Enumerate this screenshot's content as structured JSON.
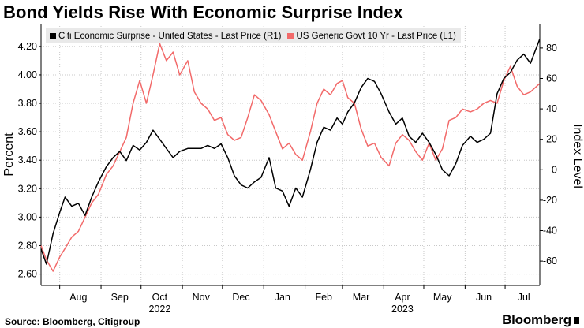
{
  "header": {
    "title": "Bond Yields Rise With Economic Surprise Index"
  },
  "footer": {
    "source": "Source: Bloomberg, Citigroup",
    "brand": "Bloomberg"
  },
  "colors": {
    "citi": "#000000",
    "yield": "#f26a6a",
    "grid": "#c8c8c8",
    "legend_bg": "#e9e9e9"
  },
  "chart_data": {
    "type": "line",
    "title": "Bond Yields Rise With Economic Surprise Index",
    "ylabel_left": "Percent",
    "ylabel_right": "Index Level",
    "left_ticks": [
      "4.20",
      "4.00",
      "3.80",
      "3.60",
      "3.40",
      "3.20",
      "3.00",
      "2.80",
      "2.60"
    ],
    "right_ticks": [
      "80",
      "60",
      "40",
      "20",
      "0",
      "-20",
      "-40",
      "-60"
    ],
    "ylim_left": [
      2.52,
      4.36
    ],
    "ylim_right": [
      -76,
      96
    ],
    "x_range": [
      "2022-07-18",
      "2023-07-27"
    ],
    "months": [
      {
        "label": "Aug",
        "date": "2022-08-15"
      },
      {
        "label": "Sep",
        "date": "2022-09-15"
      },
      {
        "label": "Oct",
        "date": "2022-10-15"
      },
      {
        "label": "Nov",
        "date": "2022-11-15"
      },
      {
        "label": "Dec",
        "date": "2022-12-15"
      },
      {
        "label": "Jan",
        "date": "2023-01-15"
      },
      {
        "label": "Feb",
        "date": "2023-02-15"
      },
      {
        "label": "Mar",
        "date": "2023-03-15"
      },
      {
        "label": "Apr",
        "date": "2023-04-15"
      },
      {
        "label": "May",
        "date": "2023-05-15"
      },
      {
        "label": "Jun",
        "date": "2023-06-15"
      },
      {
        "label": "Jul",
        "date": "2023-07-15"
      }
    ],
    "years": [
      {
        "label": "2022",
        "date": "2022-10-15"
      },
      {
        "label": "2023",
        "date": "2023-04-15"
      }
    ],
    "gridlines": true,
    "legend_position": "top-left",
    "series": [
      {
        "name": "Citi Economic Surprise - United States - Last Price (R1)",
        "axis": "right",
        "color": "#000000",
        "x": [
          "2022-07-18",
          "2022-07-22",
          "2022-07-27",
          "2022-08-01",
          "2022-08-05",
          "2022-08-10",
          "2022-08-15",
          "2022-08-20",
          "2022-08-25",
          "2022-08-30",
          "2022-09-05",
          "2022-09-10",
          "2022-09-15",
          "2022-09-20",
          "2022-09-25",
          "2022-09-30",
          "2022-10-05",
          "2022-10-10",
          "2022-10-15",
          "2022-10-20",
          "2022-10-25",
          "2022-10-30",
          "2022-11-05",
          "2022-11-10",
          "2022-11-15",
          "2022-11-20",
          "2022-11-25",
          "2022-11-30",
          "2022-12-05",
          "2022-12-10",
          "2022-12-15",
          "2022-12-20",
          "2022-12-25",
          "2022-12-30",
          "2023-01-05",
          "2023-01-10",
          "2023-01-15",
          "2023-01-20",
          "2023-01-25",
          "2023-01-30",
          "2023-02-05",
          "2023-02-10",
          "2023-02-15",
          "2023-02-20",
          "2023-02-25",
          "2023-03-01",
          "2023-03-05",
          "2023-03-10",
          "2023-03-15",
          "2023-03-20",
          "2023-03-25",
          "2023-03-30",
          "2023-04-05",
          "2023-04-10",
          "2023-04-15",
          "2023-04-20",
          "2023-04-25",
          "2023-04-30",
          "2023-05-05",
          "2023-05-10",
          "2023-05-15",
          "2023-05-20",
          "2023-05-25",
          "2023-05-30",
          "2023-06-05",
          "2023-06-10",
          "2023-06-15",
          "2023-06-20",
          "2023-06-25",
          "2023-06-30",
          "2023-07-05",
          "2023-07-10",
          "2023-07-15",
          "2023-07-20",
          "2023-07-27"
        ],
        "values": [
          -52,
          -62,
          -42,
          -28,
          -18,
          -24,
          -22,
          -30,
          -18,
          -8,
          2,
          8,
          12,
          6,
          16,
          13,
          18,
          26,
          20,
          14,
          8,
          12,
          14,
          14,
          14,
          16,
          14,
          17,
          8,
          -4,
          -10,
          -12,
          -8,
          -5,
          8,
          -12,
          -14,
          -24,
          -12,
          -18,
          0,
          18,
          28,
          26,
          34,
          30,
          38,
          44,
          54,
          60,
          58,
          50,
          38,
          30,
          34,
          22,
          18,
          24,
          18,
          10,
          0,
          -4,
          4,
          16,
          22,
          18,
          20,
          24,
          50,
          60,
          64,
          72,
          76,
          70,
          86
        ]
      },
      {
        "name": "US Generic Govt 10 Yr - Last Price (L1)",
        "axis": "left",
        "color": "#f26a6a",
        "x": [
          "2022-07-18",
          "2022-07-22",
          "2022-07-27",
          "2022-08-01",
          "2022-08-05",
          "2022-08-10",
          "2022-08-15",
          "2022-08-20",
          "2022-08-25",
          "2022-08-30",
          "2022-09-05",
          "2022-09-10",
          "2022-09-15",
          "2022-09-20",
          "2022-09-25",
          "2022-09-30",
          "2022-10-05",
          "2022-10-10",
          "2022-10-15",
          "2022-10-20",
          "2022-10-25",
          "2022-10-30",
          "2022-11-05",
          "2022-11-10",
          "2022-11-15",
          "2022-11-20",
          "2022-11-25",
          "2022-11-30",
          "2022-12-05",
          "2022-12-10",
          "2022-12-15",
          "2022-12-20",
          "2022-12-25",
          "2022-12-30",
          "2023-01-05",
          "2023-01-10",
          "2023-01-15",
          "2023-01-20",
          "2023-01-25",
          "2023-01-30",
          "2023-02-05",
          "2023-02-10",
          "2023-02-15",
          "2023-02-20",
          "2023-02-25",
          "2023-03-01",
          "2023-03-05",
          "2023-03-10",
          "2023-03-15",
          "2023-03-20",
          "2023-03-25",
          "2023-03-30",
          "2023-04-05",
          "2023-04-10",
          "2023-04-15",
          "2023-04-20",
          "2023-04-25",
          "2023-04-30",
          "2023-05-05",
          "2023-05-10",
          "2023-05-15",
          "2023-05-20",
          "2023-05-25",
          "2023-05-30",
          "2023-06-05",
          "2023-06-10",
          "2023-06-15",
          "2023-06-20",
          "2023-06-25",
          "2023-06-30",
          "2023-07-05",
          "2023-07-10",
          "2023-07-15",
          "2023-07-20",
          "2023-07-27"
        ],
        "values": [
          2.8,
          2.7,
          2.62,
          2.72,
          2.78,
          2.86,
          2.9,
          3.0,
          3.1,
          3.16,
          3.3,
          3.36,
          3.46,
          3.56,
          3.8,
          3.96,
          3.8,
          4.0,
          4.22,
          4.1,
          4.16,
          4.0,
          4.1,
          3.88,
          3.8,
          3.76,
          3.68,
          3.7,
          3.58,
          3.54,
          3.56,
          3.7,
          3.86,
          3.82,
          3.72,
          3.6,
          3.48,
          3.52,
          3.44,
          3.4,
          3.6,
          3.8,
          3.9,
          3.86,
          3.94,
          3.96,
          3.84,
          3.8,
          3.62,
          3.5,
          3.52,
          3.42,
          3.36,
          3.52,
          3.58,
          3.54,
          3.46,
          3.4,
          3.52,
          3.4,
          3.48,
          3.68,
          3.7,
          3.76,
          3.74,
          3.76,
          3.8,
          3.82,
          3.8,
          3.96,
          4.06,
          3.92,
          3.86,
          3.88,
          3.94
        ]
      }
    ]
  }
}
